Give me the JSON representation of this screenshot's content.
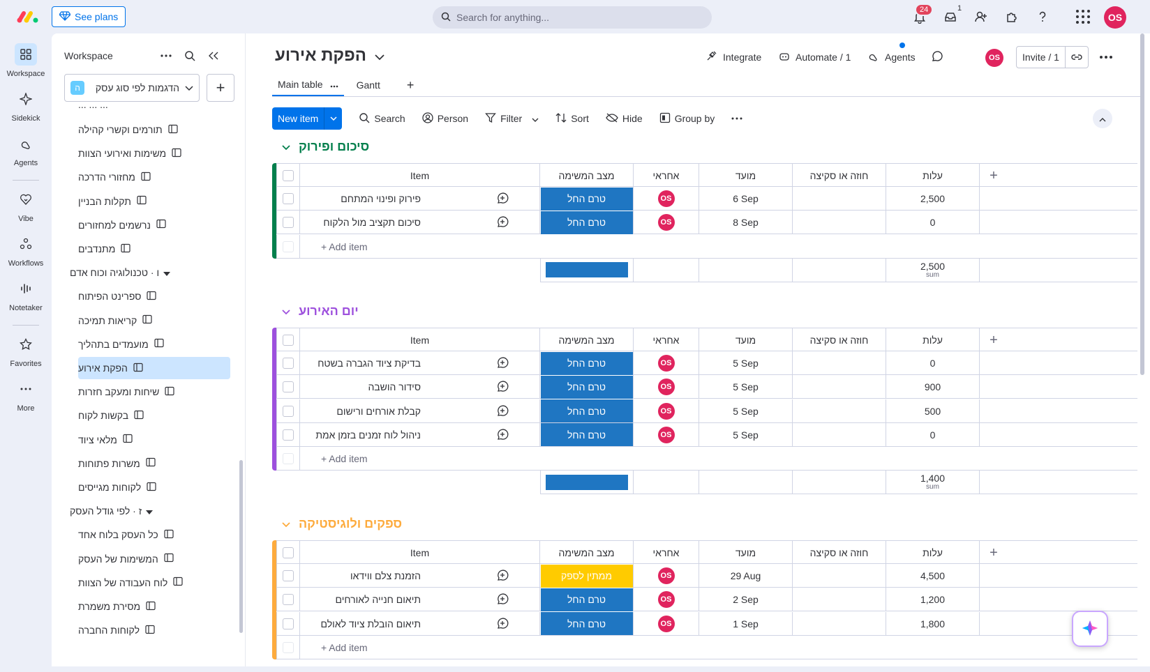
{
  "topbar": {
    "see_plans": "See plans",
    "search_placeholder": "Search for anything...",
    "notifications_count": "24",
    "inbox_count": "1",
    "avatar": "OS"
  },
  "rail": {
    "items": [
      {
        "label": "Workspace",
        "icon": "grid-icon"
      },
      {
        "label": "Sidekick",
        "icon": "sparkle-icon"
      },
      {
        "label": "Agents",
        "icon": "agents-icon"
      },
      {
        "label": "Vibe",
        "icon": "heart-icon"
      },
      {
        "label": "Workflows",
        "icon": "workflow-icon"
      },
      {
        "label": "Notetaker",
        "icon": "waveform-icon"
      },
      {
        "label": "Favorites",
        "icon": "star-icon"
      },
      {
        "label": "More",
        "icon": "more-icon"
      }
    ]
  },
  "sidebar": {
    "title": "Workspace",
    "workspace_letter": "ה",
    "workspace_name": "הדגמות לפי סוג עסק",
    "cutoff_top": "... ... ...",
    "boards_a": [
      "תורמים וקשרי קהילה",
      "משימות ואירועי הצוות",
      "מחזורי הדרכה",
      "תקלות הבניין",
      "נרשמים למחזורים",
      "מתנדבים"
    ],
    "folder_1": "ו · טכנולוגיה וכוח אדם",
    "boards_b": [
      "ספרינט הפיתוח",
      "קריאות תמיכה",
      "מועמדים בתהליך",
      "הפקת אירוע",
      "שיחות ומעקב חזרות",
      "בקשות לקוח",
      "מלאי ציוד",
      "משרות פתוחות",
      "לקוחות מגייסים"
    ],
    "folder_2": "ז · לפי גודל העסק",
    "boards_c": [
      "כל העסק בלוח אחד",
      "המשימות של העסק",
      "לוח העבודה של הצוות",
      "מסירת משמרת",
      "לקוחות החברה"
    ]
  },
  "board": {
    "title": "הפקת אירוע",
    "integrate": "Integrate",
    "automate": "Automate / 1",
    "agents": "Agents",
    "avatar": "OS",
    "invite": "Invite / 1",
    "tabs": [
      "Main table",
      "Gantt"
    ],
    "toolbar": {
      "new_item": "New item",
      "search": "Search",
      "person": "Person",
      "filter": "Filter",
      "sort": "Sort",
      "hide": "Hide",
      "group_by": "Group by"
    }
  },
  "columns": {
    "item": "Item",
    "status": "מצב המשימה",
    "owner": "אחראי",
    "date": "מועד",
    "budget": "חוזה או סקיצה",
    "cost": "עלות"
  },
  "common": {
    "add_item": "+ Add item",
    "sum": "sum",
    "owner_initials": "OS"
  },
  "colors": {
    "group_green": "#037f4c",
    "group_purple": "#9d50dd",
    "group_orange": "#fdab3d",
    "status_blue": "#1f76c2",
    "status_yellow": "#ffcb00",
    "accent": "#0073ea"
  },
  "groups": [
    {
      "title": "סיכום ופירוק",
      "sum": "2,500",
      "items": [
        {
          "name": "פירוק ופינוי המתחם",
          "status": "טרם החל",
          "date": "6 Sep",
          "cost": "2,500"
        },
        {
          "name": "סיכום תקציב מול הלקוח",
          "status": "טרם החל",
          "date": "8 Sep",
          "cost": "0"
        }
      ]
    },
    {
      "title": "יום האירוע",
      "sum": "1,400",
      "items": [
        {
          "name": "בדיקת ציוד הגברה בשטח",
          "status": "טרם החל",
          "date": "5 Sep",
          "cost": "0"
        },
        {
          "name": "סידור הושבה",
          "status": "טרם החל",
          "date": "5 Sep",
          "cost": "900"
        },
        {
          "name": "קבלת אורחים ורישום",
          "status": "טרם החל",
          "date": "5 Sep",
          "cost": "500"
        },
        {
          "name": "ניהול לוח זמנים בזמן אמת",
          "status": "טרם החל",
          "date": "5 Sep",
          "cost": "0"
        }
      ]
    },
    {
      "title": "ספקים ולוגיסטיקה",
      "items": [
        {
          "name": "הזמנת צלם ווידאו",
          "status": "ממתין לספק",
          "date": "29 Aug",
          "cost": "4,500"
        },
        {
          "name": "תיאום חנייה לאורחים",
          "status": "טרם החל",
          "date": "2 Sep",
          "cost": "1,200"
        },
        {
          "name": "תיאום הובלת ציוד לאולם",
          "status": "טרם החל",
          "date": "1 Sep",
          "cost": "1,800"
        }
      ]
    }
  ]
}
